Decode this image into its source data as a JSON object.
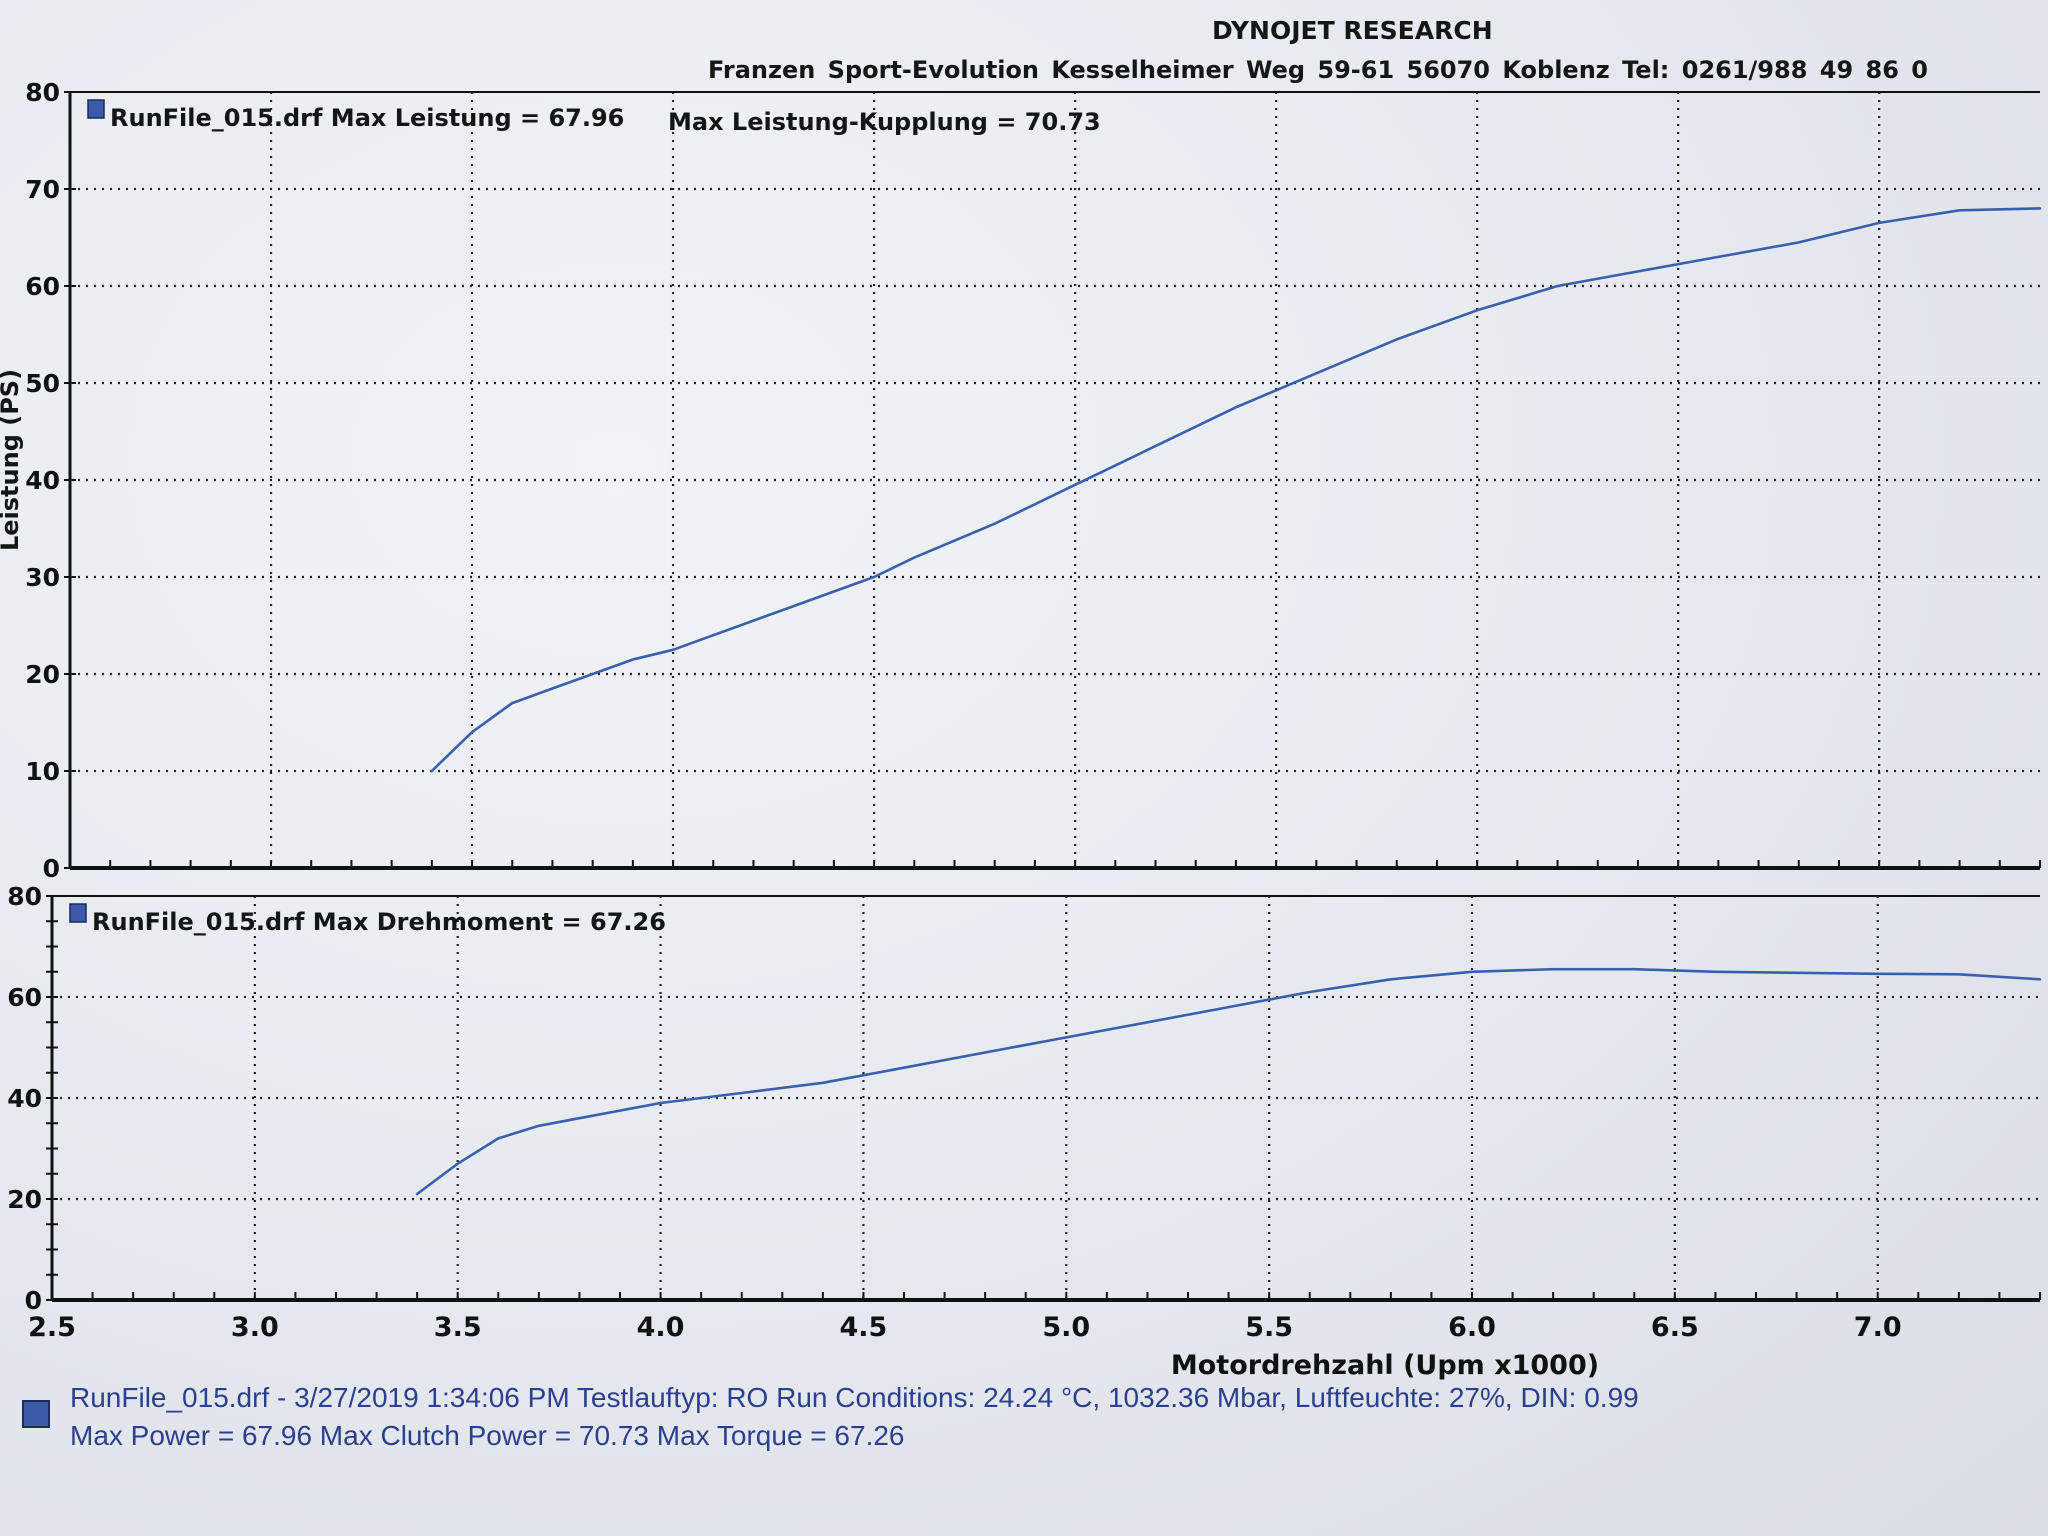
{
  "header": {
    "title": "DYNOJET RESEARCH",
    "address": "Franzen Sport-Evolution   Kesselheimer Weg 59-61   56070 Koblenz   Tel: 0261/988 49 86 0"
  },
  "chart_data": [
    {
      "type": "line",
      "legend": "RunFile_015.drf Max Leistung = 67.96",
      "annotation": "Max Leistung-Kupplung = 70.73",
      "ylabel": "Leistung (PS)",
      "ylim": [
        0,
        80
      ],
      "xlim": [
        2.5,
        7.4
      ],
      "y_ticks": [
        "80",
        "70",
        "60",
        "50",
        "40",
        "30",
        "20",
        "10",
        "0"
      ],
      "grid": true,
      "color": "#3a5fae",
      "series": [
        {
          "x": [
            3.4,
            3.5,
            3.6,
            3.7,
            3.8,
            3.9,
            4.0,
            4.1,
            4.2,
            4.3,
            4.4,
            4.5,
            4.6,
            4.8,
            5.0,
            5.2,
            5.4,
            5.6,
            5.8,
            6.0,
            6.2,
            6.4,
            6.6,
            6.8,
            7.0,
            7.2,
            7.4
          ],
          "y": [
            10,
            14,
            17,
            18.5,
            20,
            21.5,
            22.5,
            24,
            25.5,
            27,
            28.5,
            30,
            32,
            35.5,
            39.5,
            43.5,
            47.5,
            51,
            54.5,
            57.5,
            60,
            61.5,
            63,
            64.5,
            66.5,
            67.8,
            68
          ]
        }
      ]
    },
    {
      "type": "line",
      "legend": "RunFile_015.drf Max Drehmoment = 67.26",
      "ylabel": "",
      "ylim": [
        0,
        80
      ],
      "xlim": [
        2.5,
        7.4
      ],
      "y_ticks": [
        "80",
        "60",
        "40",
        "20",
        "0"
      ],
      "xlabel": "Motordrehzahl (Upm x1000)",
      "x_ticks": [
        "2.5",
        "3.0",
        "3.5",
        "4.0",
        "4.5",
        "5.0",
        "5.5",
        "6.0",
        "6.5",
        "7.0"
      ],
      "grid": true,
      "color": "#3a5fae",
      "series": [
        {
          "x": [
            3.4,
            3.5,
            3.6,
            3.7,
            3.8,
            3.9,
            4.0,
            4.2,
            4.4,
            4.6,
            4.8,
            5.0,
            5.2,
            5.4,
            5.6,
            5.8,
            6.0,
            6.2,
            6.4,
            6.6,
            6.8,
            7.0,
            7.2,
            7.4
          ],
          "y": [
            21,
            27,
            32,
            34.5,
            36,
            37.5,
            39,
            41,
            43,
            46,
            49,
            52,
            55,
            58,
            61,
            63.5,
            65,
            65.5,
            65.5,
            65,
            64.8,
            64.6,
            64.5,
            63.5
          ]
        }
      ]
    }
  ],
  "footer": {
    "line1": "RunFile_015.drf - 3/27/2019 1:34:06 PM  Testlauftyp: RO  Run Conditions: 24.24 °C, 1032.36 Mbar,  Luftfeuchte: 27%, DIN: 0.99",
    "line2": "Max Power = 67.96  Max Clutch Power = 70.73  Max Torque = 67.26"
  }
}
